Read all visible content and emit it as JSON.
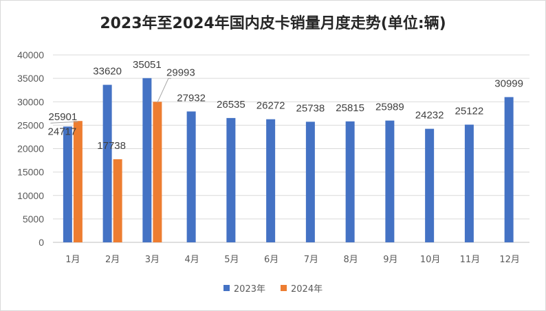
{
  "chart_data": {
    "type": "bar",
    "title": "2023年至2024年国内皮卡销量月度走势(单位:辆)",
    "categories": [
      "1月",
      "2月",
      "3月",
      "4月",
      "5月",
      "6月",
      "7月",
      "8月",
      "9月",
      "10月",
      "11月",
      "12月"
    ],
    "series": [
      {
        "name": "2023年",
        "color": "#4472c4",
        "values": [
          24717,
          33620,
          35051,
          27932,
          26535,
          26272,
          25738,
          25815,
          25989,
          24232,
          25122,
          30999
        ]
      },
      {
        "name": "2024年",
        "color": "#ed7d31",
        "values": [
          25901,
          17738,
          29993,
          null,
          null,
          null,
          null,
          null,
          null,
          null,
          null,
          null
        ]
      }
    ],
    "yticks": [
      0,
      5000,
      10000,
      15000,
      20000,
      25000,
      30000,
      35000,
      40000
    ],
    "ylim": [
      0,
      40000
    ],
    "grid": true,
    "legend_position": "bottom"
  }
}
